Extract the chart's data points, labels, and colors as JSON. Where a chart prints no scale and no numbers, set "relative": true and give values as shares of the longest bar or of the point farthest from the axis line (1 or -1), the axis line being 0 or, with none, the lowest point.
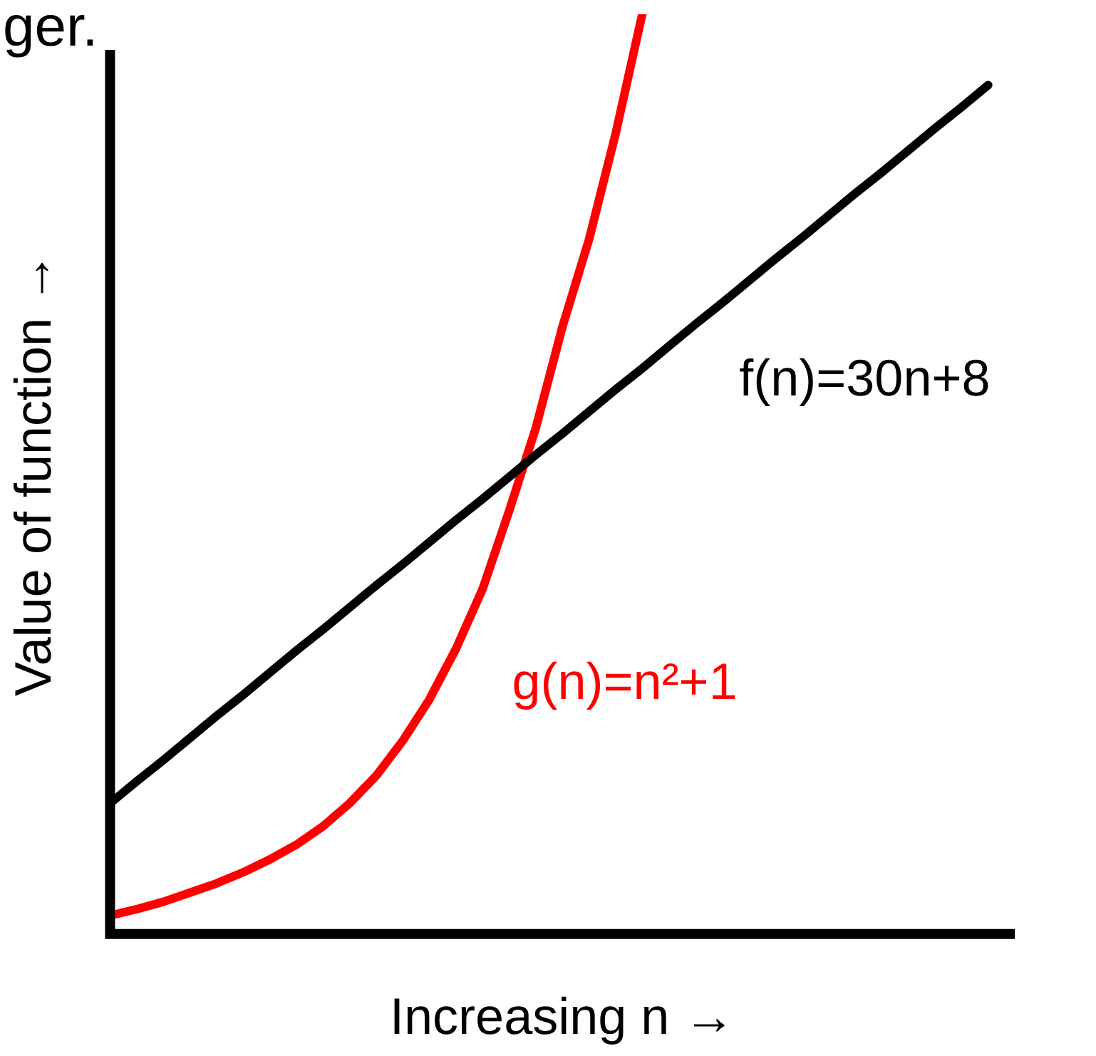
{
  "chart_data": {
    "type": "line",
    "relative": true,
    "xlabel": "Increasing n →",
    "ylabel": "Value of function →",
    "annotations": [
      "ger."
    ],
    "grid": false,
    "legend": false,
    "marker": "none",
    "line_style": "solid",
    "categories": [
      null,
      null,
      null,
      null,
      null,
      null,
      null,
      null,
      null,
      null,
      null,
      null,
      null,
      null,
      null,
      null,
      null,
      null,
      null,
      null,
      null,
      null,
      null,
      null,
      null,
      null,
      null,
      null,
      null,
      null,
      null,
      null,
      null,
      null,
      null
    ],
    "series": [
      {
        "name": "f(n)=30n+8",
        "color": "#000000",
        "values": [
          0.142,
          0.166,
          0.189,
          0.213,
          0.237,
          0.26,
          0.284,
          0.308,
          0.331,
          0.355,
          0.379,
          0.402,
          0.426,
          0.45,
          0.473,
          0.497,
          0.521,
          0.544,
          0.568,
          0.592,
          0.615,
          0.639,
          0.663,
          0.686,
          0.71,
          0.734,
          0.757,
          0.781,
          0.805,
          0.828,
          0.852,
          0.876,
          0.899,
          0.923,
          null
        ]
      },
      {
        "name": "g(n)=n²+1",
        "color": "#ff0000",
        "values": [
          0.02,
          0.027,
          0.035,
          0.045,
          0.055,
          0.067,
          0.081,
          0.097,
          0.117,
          0.142,
          0.172,
          0.21,
          0.255,
          0.31,
          0.375,
          0.46,
          0.55,
          0.66,
          0.755,
          0.87,
          1.0,
          null,
          null,
          null,
          null,
          null,
          null,
          null,
          null,
          null,
          null,
          null,
          null,
          null,
          null
        ]
      }
    ]
  }
}
